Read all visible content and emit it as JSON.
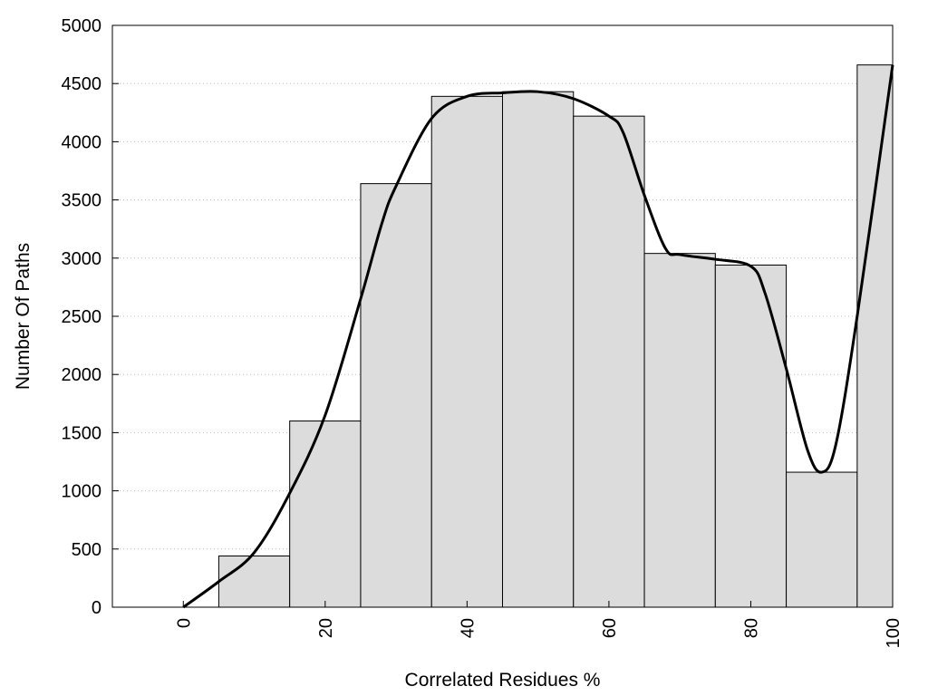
{
  "chart_data": {
    "type": "bar",
    "title": "",
    "xlabel": "Correlated Residues %",
    "ylabel": "Number Of Paths",
    "xlim": [
      -10,
      100
    ],
    "ylim": [
      0,
      5000
    ],
    "x_ticks": [
      0,
      20,
      40,
      60,
      80,
      100
    ],
    "y_ticks": [
      0,
      500,
      1000,
      1500,
      2000,
      2500,
      3000,
      3500,
      4000,
      4500,
      5000
    ],
    "grid": "horizontal dotted",
    "legend": "none",
    "bin_width": 10,
    "bars": [
      {
        "x": 0,
        "value": 0
      },
      {
        "x": 10,
        "value": 440
      },
      {
        "x": 20,
        "value": 1600
      },
      {
        "x": 30,
        "value": 3640
      },
      {
        "x": 40,
        "value": 4390
      },
      {
        "x": 50,
        "value": 4430
      },
      {
        "x": 60,
        "value": 4220
      },
      {
        "x": 70,
        "value": 3040
      },
      {
        "x": 80,
        "value": 2940
      },
      {
        "x": 90,
        "value": 1160
      },
      {
        "x": 100,
        "value": 4660
      }
    ],
    "curve": {
      "x": [
        0,
        5,
        10,
        15,
        20,
        25,
        28,
        30,
        35,
        40,
        45,
        50,
        55,
        60,
        62,
        65,
        68,
        70,
        75,
        80,
        82,
        85,
        88,
        90,
        92,
        95,
        100
      ],
      "y": [
        0,
        220,
        470,
        980,
        1650,
        2650,
        3300,
        3620,
        4200,
        4390,
        4420,
        4430,
        4370,
        4220,
        4080,
        3540,
        3080,
        3030,
        2990,
        2930,
        2700,
        2050,
        1350,
        1160,
        1400,
        2500,
        4660
      ]
    },
    "colors": {
      "bar_fill": "#dcdcdc",
      "bar_stroke": "#000000",
      "curve": "#000000",
      "grid": "#bdbdbd"
    }
  }
}
